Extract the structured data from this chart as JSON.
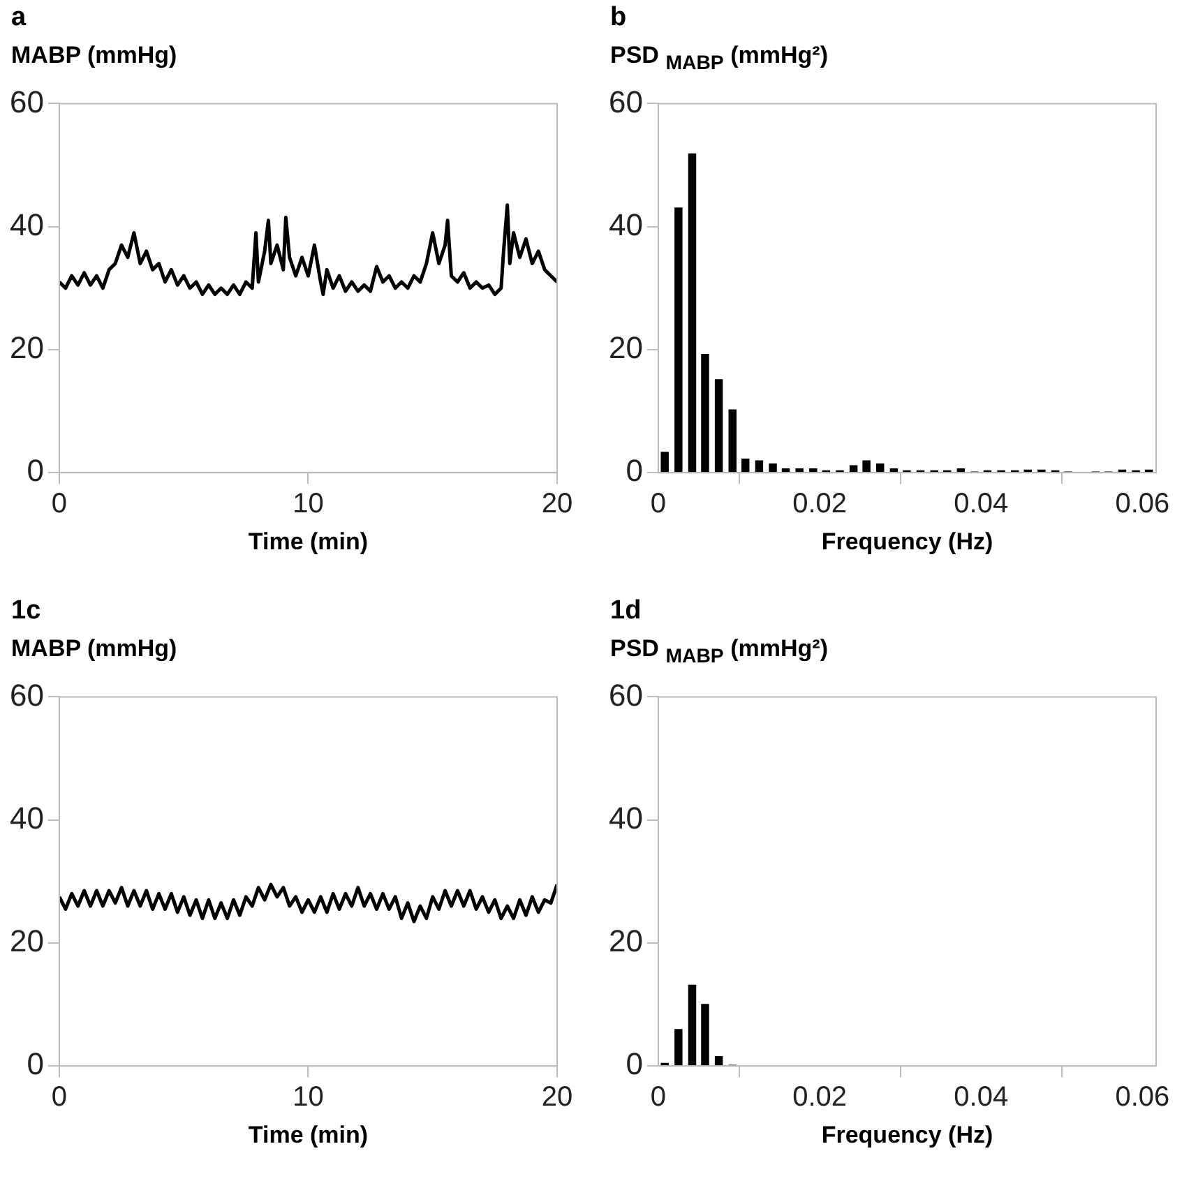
{
  "chart_data": [
    {
      "type": "line",
      "title": "a",
      "ylabel": "MABP (mmHg)",
      "xlabel": "Time (min)",
      "color": "#000000",
      "xlim": [
        0,
        20
      ],
      "xticks": [
        0,
        10,
        20
      ],
      "ylim": [
        0,
        60
      ],
      "yticks": [
        0,
        20,
        40,
        60
      ],
      "x": [
        0,
        0.25,
        0.5,
        0.75,
        1,
        1.25,
        1.5,
        1.75,
        2,
        2.25,
        2.5,
        2.75,
        3,
        3.25,
        3.5,
        3.75,
        4,
        4.25,
        4.5,
        4.75,
        5,
        5.25,
        5.5,
        5.75,
        6,
        6.25,
        6.5,
        6.75,
        7,
        7.25,
        7.5,
        7.75,
        7.9,
        8,
        8.25,
        8.4,
        8.5,
        8.75,
        9,
        9.1,
        9.25,
        9.5,
        9.75,
        10,
        10.25,
        10.5,
        10.6,
        10.75,
        11,
        11.25,
        11.5,
        11.75,
        12,
        12.25,
        12.5,
        12.75,
        13,
        13.25,
        13.5,
        13.75,
        14,
        14.25,
        14.5,
        14.75,
        15,
        15.25,
        15.5,
        15.6,
        15.75,
        16,
        16.25,
        16.5,
        16.75,
        17,
        17.25,
        17.5,
        17.75,
        17.85,
        18,
        18.1,
        18.25,
        18.5,
        18.75,
        19,
        19.25,
        19.5,
        19.75,
        20
      ],
      "values": [
        31,
        30,
        32,
        30.5,
        32.5,
        30.5,
        32,
        30,
        33,
        34,
        37,
        35,
        39,
        34,
        36,
        33,
        34,
        31,
        33,
        30.5,
        32,
        30,
        31,
        29,
        30.5,
        29,
        30,
        29,
        30.5,
        29,
        31,
        30,
        39,
        31,
        36,
        41,
        34,
        37,
        33,
        41.5,
        35,
        32,
        35,
        32,
        37,
        31,
        29,
        33,
        30,
        32,
        29.5,
        31,
        29.5,
        30.5,
        29.5,
        33.5,
        31,
        32,
        30,
        31,
        30,
        32,
        31,
        34,
        39,
        34,
        37,
        41,
        32,
        31,
        32.5,
        30,
        31,
        30,
        30.5,
        29,
        30,
        36,
        43.5,
        34,
        39,
        35,
        38,
        34,
        36,
        33,
        32,
        31
      ]
    },
    {
      "type": "bar",
      "title": "b",
      "ylabel": "PSD $_{MABP}$ (mmHg²)",
      "xlabel": "Frequency (Hz)",
      "color": "#000000",
      "xlim": [
        0,
        0.0617
      ],
      "xticks": [
        0,
        0.02,
        0.04,
        0.06
      ],
      "ylim": [
        0,
        60
      ],
      "yticks": [
        0,
        20,
        40,
        60
      ],
      "x": [
        0.0008,
        0.0025,
        0.0042,
        0.0058,
        0.0075,
        0.0092,
        0.0108,
        0.0125,
        0.0142,
        0.0158,
        0.0175,
        0.0192,
        0.0208,
        0.0225,
        0.0242,
        0.0258,
        0.0275,
        0.0292,
        0.0308,
        0.0325,
        0.0342,
        0.0358,
        0.0375,
        0.0392,
        0.0408,
        0.0425,
        0.0442,
        0.0458,
        0.0475,
        0.0492,
        0.0508,
        0.0525,
        0.0542,
        0.0558,
        0.0575,
        0.0592,
        0.0608
      ],
      "values": [
        3.4,
        43.1,
        51.9,
        19.3,
        15.2,
        10.3,
        2.3,
        2.0,
        1.5,
        0.7,
        0.7,
        0.7,
        0.4,
        0.4,
        1.2,
        2.0,
        1.5,
        0.7,
        0.4,
        0.4,
        0.4,
        0.4,
        0.7,
        0.2,
        0.4,
        0.4,
        0.4,
        0.5,
        0.5,
        0.4,
        0.2,
        0,
        0.2,
        0.2,
        0.5,
        0.4,
        0.5
      ]
    },
    {
      "type": "line",
      "title": "1c",
      "ylabel": "MABP (mmHg)",
      "xlabel": "Time (min)",
      "color": "#000000",
      "xlim": [
        0,
        20
      ],
      "xticks": [
        0,
        10,
        20
      ],
      "ylim": [
        0,
        60
      ],
      "yticks": [
        0,
        20,
        40,
        60
      ],
      "x": [
        0,
        0.25,
        0.5,
        0.75,
        1,
        1.25,
        1.5,
        1.75,
        2,
        2.25,
        2.5,
        2.75,
        3,
        3.25,
        3.5,
        3.75,
        4,
        4.25,
        4.5,
        4.75,
        5,
        5.25,
        5.5,
        5.75,
        6,
        6.25,
        6.5,
        6.75,
        7,
        7.25,
        7.5,
        7.75,
        8,
        8.25,
        8.5,
        8.75,
        9,
        9.25,
        9.5,
        9.75,
        10,
        10.25,
        10.5,
        10.75,
        11,
        11.25,
        11.5,
        11.75,
        12,
        12.25,
        12.5,
        12.75,
        13,
        13.25,
        13.5,
        13.75,
        14,
        14.25,
        14.5,
        14.75,
        15,
        15.25,
        15.5,
        15.75,
        16,
        16.25,
        16.5,
        16.75,
        17,
        17.25,
        17.5,
        17.75,
        18,
        18.25,
        18.5,
        18.75,
        19,
        19.25,
        19.5,
        19.75,
        20
      ],
      "values": [
        27.5,
        25.5,
        28,
        26,
        28.5,
        26,
        28.5,
        26,
        28.5,
        26.5,
        29,
        26,
        28.5,
        26,
        28.5,
        25.5,
        28,
        25.5,
        28,
        25,
        27.5,
        24.5,
        27,
        24,
        27,
        24,
        26.5,
        24,
        27,
        24.5,
        27.5,
        26,
        29,
        27,
        29.5,
        27.5,
        29,
        26,
        27.5,
        25,
        27,
        25,
        27.5,
        25,
        28,
        25.5,
        28,
        26,
        29,
        26,
        28,
        25.5,
        28,
        25.5,
        27.5,
        24,
        26.5,
        23.5,
        26,
        24,
        27.5,
        25.5,
        28.5,
        26,
        28.5,
        26,
        28.5,
        25.5,
        27.5,
        25,
        27,
        24,
        26,
        24,
        27,
        24.5,
        27.5,
        25,
        27,
        26.5,
        29.5
      ]
    },
    {
      "type": "bar",
      "title": "1d",
      "ylabel": "PSD $_{MABP}$ (mmHg²)",
      "xlabel": "Frequency (Hz)",
      "color": "#000000",
      "xlim": [
        0,
        0.0617
      ],
      "xticks": [
        0,
        0.02,
        0.04,
        0.06
      ],
      "ylim": [
        0,
        60
      ],
      "yticks": [
        0,
        20,
        40,
        60
      ],
      "x": [
        0.0008,
        0.0025,
        0.0042,
        0.0058,
        0.0075,
        0.0092
      ],
      "values": [
        0.5,
        6.0,
        13.2,
        10.1,
        1.6,
        0.2
      ]
    }
  ]
}
